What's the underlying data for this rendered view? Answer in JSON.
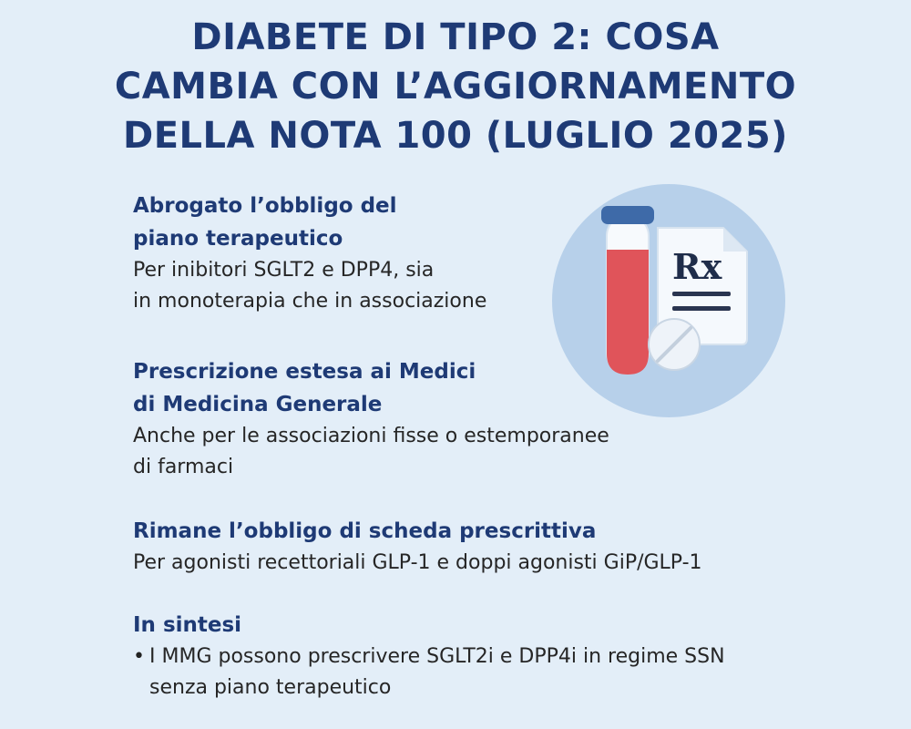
{
  "title": {
    "line1": "DIABETE DI TIPO 2: COSA",
    "line2": "CAMBIA CON L’AGGIORNAMENTO",
    "line3": "DELLA NOTA 100 (LUGLIO 2025)"
  },
  "sections": [
    {
      "heading": [
        "Abrogato l’obbligo del",
        "piano terapeutico"
      ],
      "body": [
        "Per inibitori SGLT2 e DPP4, sia",
        "in monoterapia che in associazione"
      ]
    },
    {
      "heading": [
        "Prescrizione estesa ai Medici",
        "di Medicina Generale"
      ],
      "body": [
        "Anche per le associazioni fisse o estemporanee",
        "di farmaci"
      ]
    },
    {
      "heading": [
        "Rimane l’obbligo di scheda prescrittiva"
      ],
      "body": [
        "Per agonisti recettoriali GLP-1 e doppi agonisti GiP/GLP-1"
      ]
    }
  ],
  "summary": {
    "heading": "In sintesi",
    "bullet": "•",
    "items": [
      [
        "I MMG possono prescrivere SGLT2i e DPP4i in regime SSN",
        "senza piano terapeutico"
      ]
    ]
  },
  "illustration": {
    "rx_symbol": "Rx",
    "icons": [
      "test-tube-icon",
      "prescription-document-icon",
      "pill-icon"
    ]
  },
  "colors": {
    "background": "#e3eef8",
    "title": "#1e3a75",
    "circle": "#b7d0ea",
    "tube_blood": "#e0545a",
    "tube_cap": "#3e6aa8"
  }
}
